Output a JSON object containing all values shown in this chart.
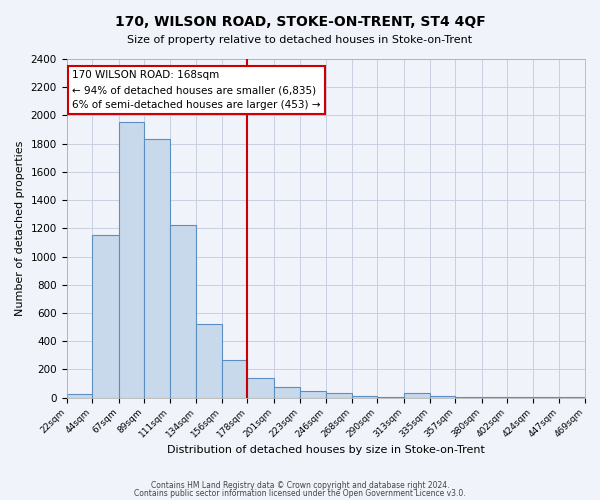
{
  "title": "170, WILSON ROAD, STOKE-ON-TRENT, ST4 4QF",
  "subtitle": "Size of property relative to detached houses in Stoke-on-Trent",
  "xlabel": "Distribution of detached houses by size in Stoke-on-Trent",
  "ylabel": "Number of detached properties",
  "bin_edges": [
    22,
    44,
    67,
    89,
    111,
    134,
    156,
    178,
    201,
    223,
    246,
    268,
    290,
    313,
    335,
    357,
    380,
    402,
    424,
    447,
    469
  ],
  "bin_labels": [
    "22sqm",
    "44sqm",
    "67sqm",
    "89sqm",
    "111sqm",
    "134sqm",
    "156sqm",
    "178sqm",
    "201sqm",
    "223sqm",
    "246sqm",
    "268sqm",
    "290sqm",
    "313sqm",
    "335sqm",
    "357sqm",
    "380sqm",
    "402sqm",
    "424sqm",
    "447sqm",
    "469sqm"
  ],
  "counts": [
    25,
    1150,
    1950,
    1830,
    1220,
    520,
    265,
    140,
    75,
    45,
    30,
    10,
    5,
    30,
    10,
    2,
    2,
    2,
    2,
    2
  ],
  "bar_color": "#c9d9ec",
  "bar_edge_color": "#5a8fc3",
  "property_size": 168,
  "vline_x": 178,
  "vline_color": "#cc0000",
  "annotation_title": "170 WILSON ROAD: 168sqm",
  "annotation_line1": "← 94% of detached houses are smaller (6,835)",
  "annotation_line2": "6% of semi-detached houses are larger (453) →",
  "annotation_box_color": "#ffffff",
  "annotation_box_edge": "#cc0000",
  "ylim": [
    0,
    2400
  ],
  "yticks": [
    0,
    200,
    400,
    600,
    800,
    1000,
    1200,
    1400,
    1600,
    1800,
    2000,
    2200,
    2400
  ],
  "footer1": "Contains HM Land Registry data © Crown copyright and database right 2024.",
  "footer2": "Contains public sector information licensed under the Open Government Licence v3.0.",
  "background_color": "#f0f4fa",
  "grid_color": "#c8d0e0"
}
